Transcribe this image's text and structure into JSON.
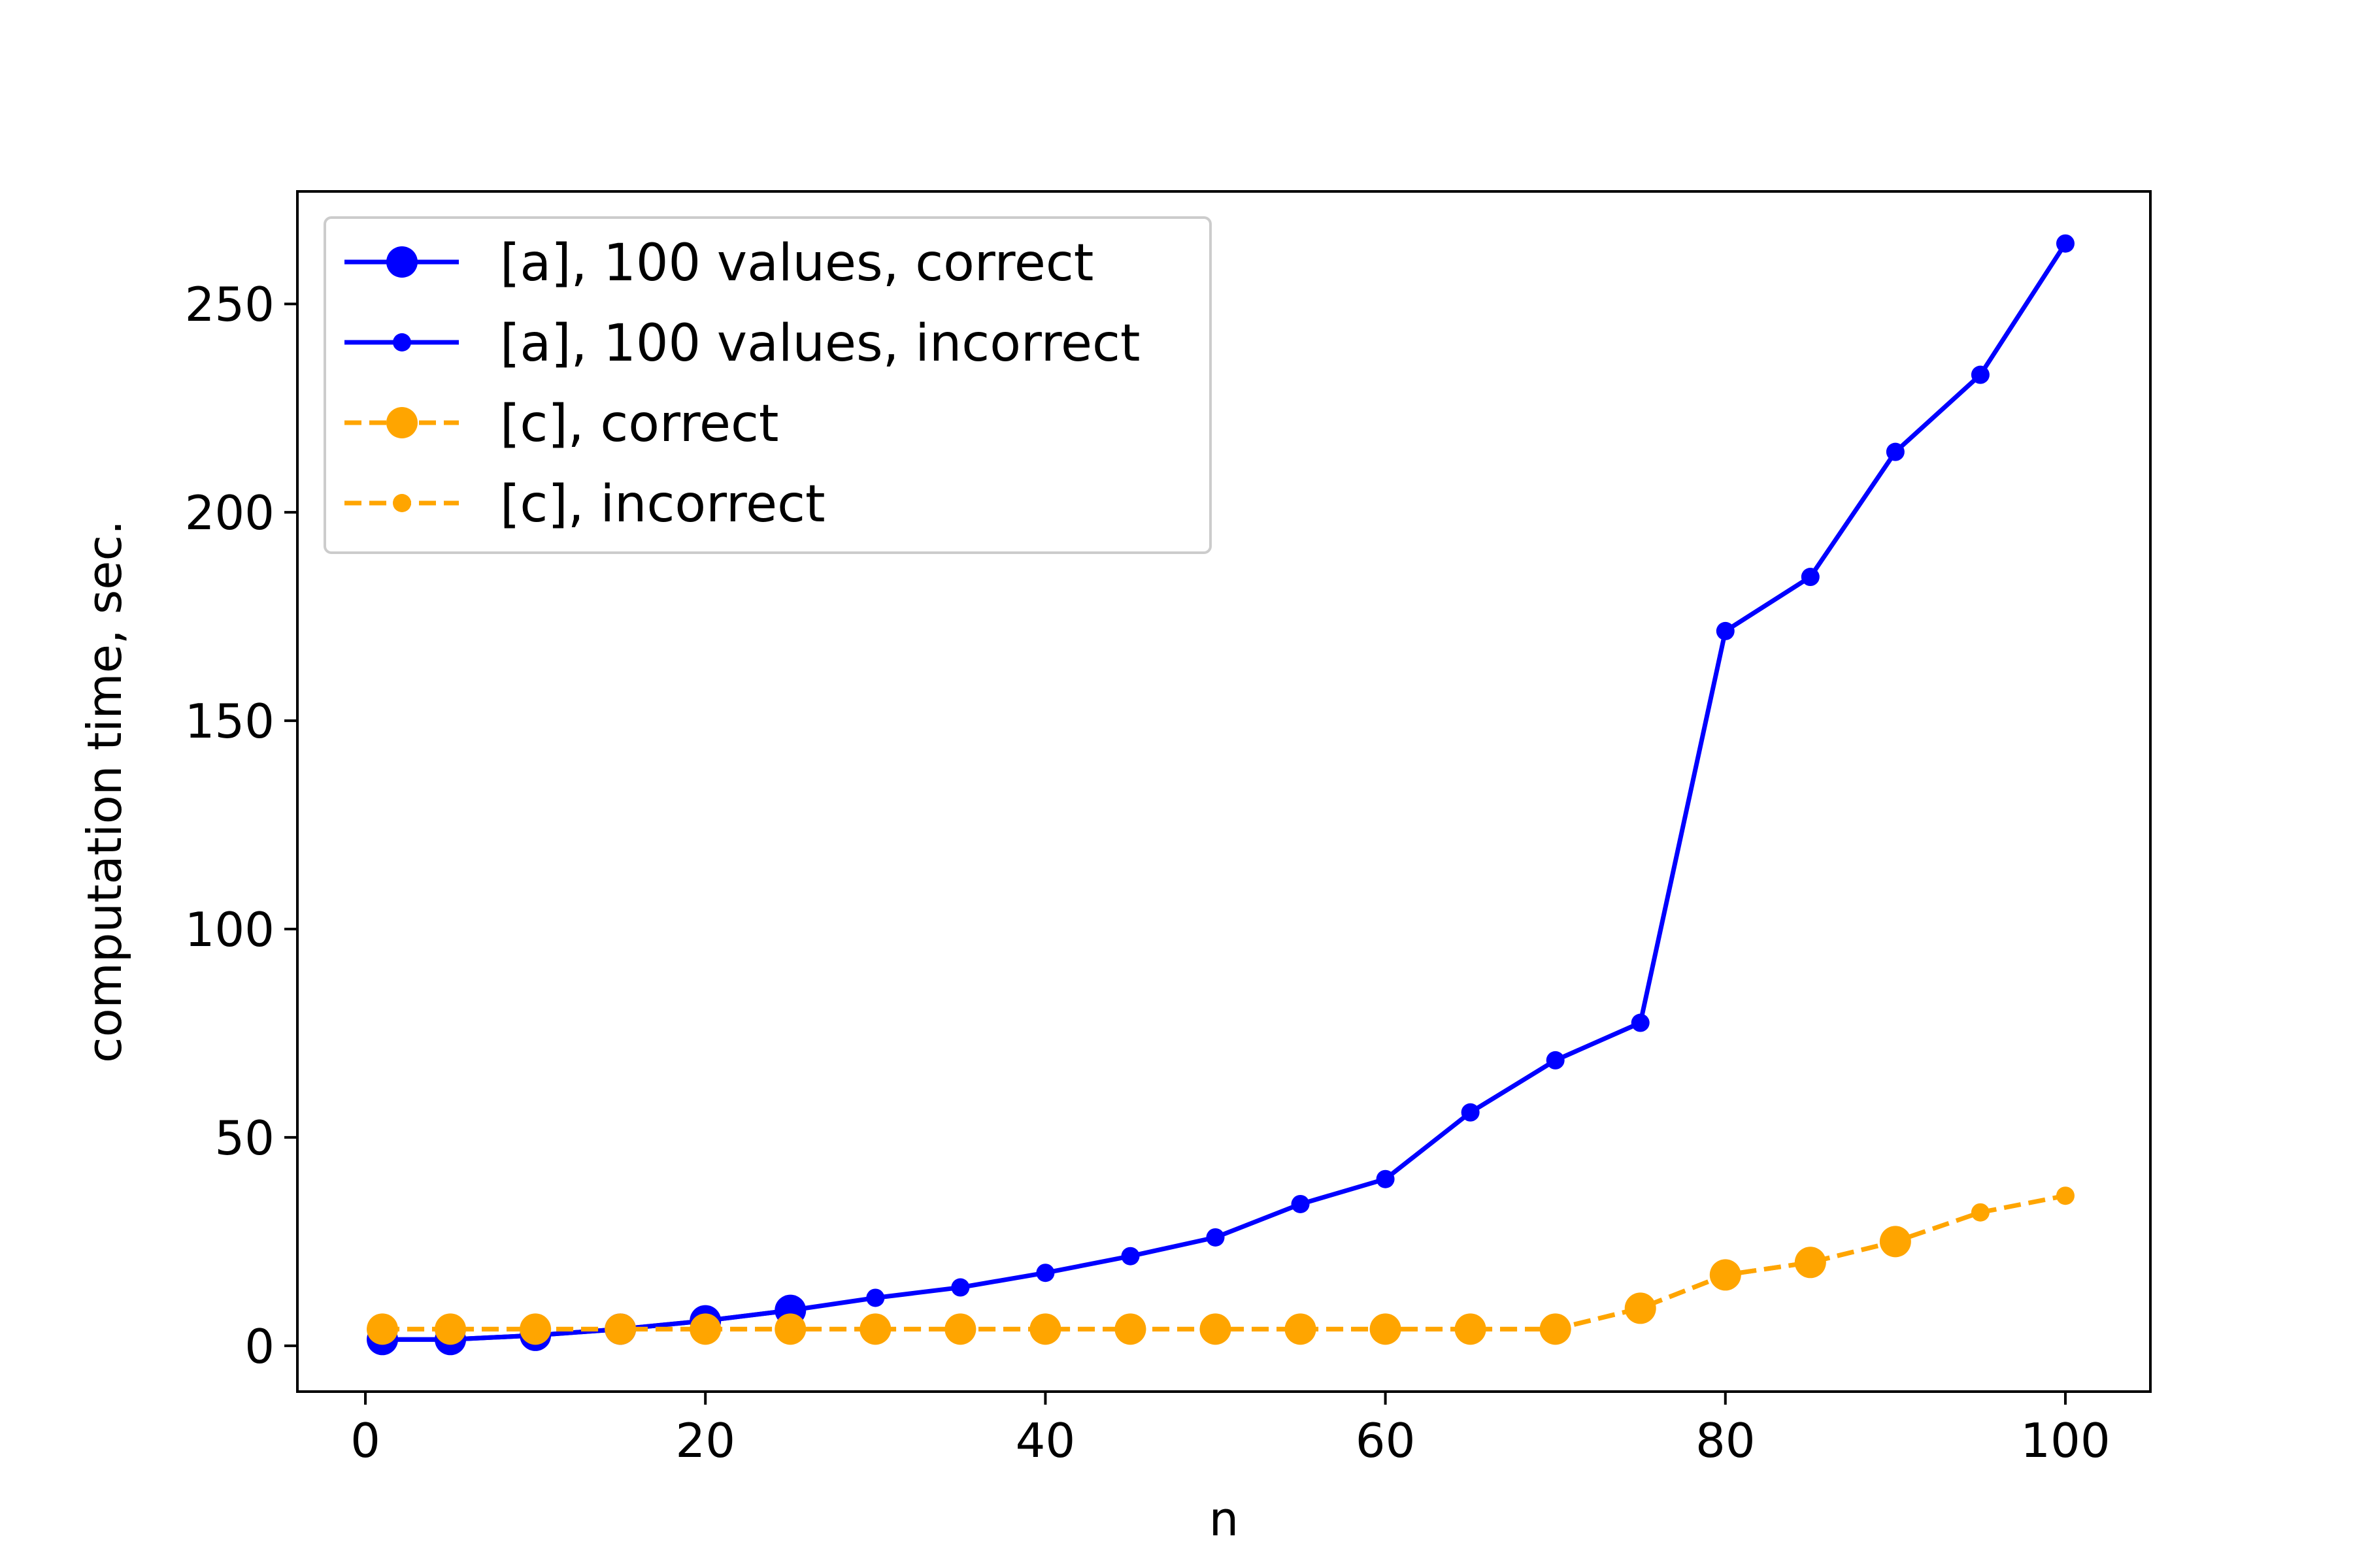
{
  "chart_data": {
    "type": "line",
    "title": "",
    "xlabel": "n",
    "ylabel": "computation time, sec.",
    "xlim": [
      -4,
      105
    ],
    "ylim": [
      -11,
      277
    ],
    "xticks": [
      0,
      20,
      40,
      60,
      80,
      100
    ],
    "yticks": [
      0,
      50,
      100,
      150,
      200,
      250
    ],
    "grid": false,
    "legend_position": "upper-left",
    "series": [
      {
        "name": "[a], 100 values, correct",
        "color": "#0000ff",
        "linestyle": "solid",
        "marker": "large-circle",
        "x": [
          1,
          5,
          10,
          15,
          20,
          25
        ],
        "y": [
          1.5,
          1.5,
          2.5,
          4,
          6,
          8.5
        ]
      },
      {
        "name": "[a], 100 values, incorrect",
        "color": "#0000ff",
        "linestyle": "solid",
        "marker": "small-circle",
        "x": [
          1,
          5,
          10,
          15,
          20,
          25,
          30,
          35,
          40,
          45,
          50,
          55,
          60,
          65,
          70,
          75,
          80,
          85,
          90,
          95,
          100
        ],
        "y": [
          1.5,
          1.5,
          2.5,
          4,
          6,
          8.5,
          11.5,
          14,
          17.5,
          21.5,
          26,
          34,
          40,
          56,
          68.5,
          77.5,
          171.5,
          184.5,
          214.5,
          233,
          264.5
        ]
      },
      {
        "name": "[c], correct",
        "color": "#ffa500",
        "linestyle": "dashed",
        "marker": "large-circle",
        "x": [
          1,
          5,
          10,
          15,
          20,
          25,
          30,
          35,
          40,
          45,
          50,
          55,
          60,
          65,
          70,
          75,
          80,
          85,
          90
        ],
        "y": [
          4,
          4,
          4,
          4,
          4,
          4,
          4,
          4,
          4,
          4,
          4,
          4,
          4,
          4,
          4,
          9,
          17,
          20,
          25
        ]
      },
      {
        "name": "[c], incorrect",
        "color": "#ffa500",
        "linestyle": "dashed",
        "marker": "small-circle",
        "x": [
          1,
          5,
          10,
          15,
          20,
          25,
          30,
          35,
          40,
          45,
          50,
          55,
          60,
          65,
          70,
          75,
          80,
          85,
          90,
          95,
          100
        ],
        "y": [
          4,
          4,
          4,
          4,
          4,
          4,
          4,
          4,
          4,
          4,
          4,
          4,
          4,
          4,
          4,
          9,
          17,
          20,
          25,
          32,
          36
        ]
      }
    ]
  }
}
